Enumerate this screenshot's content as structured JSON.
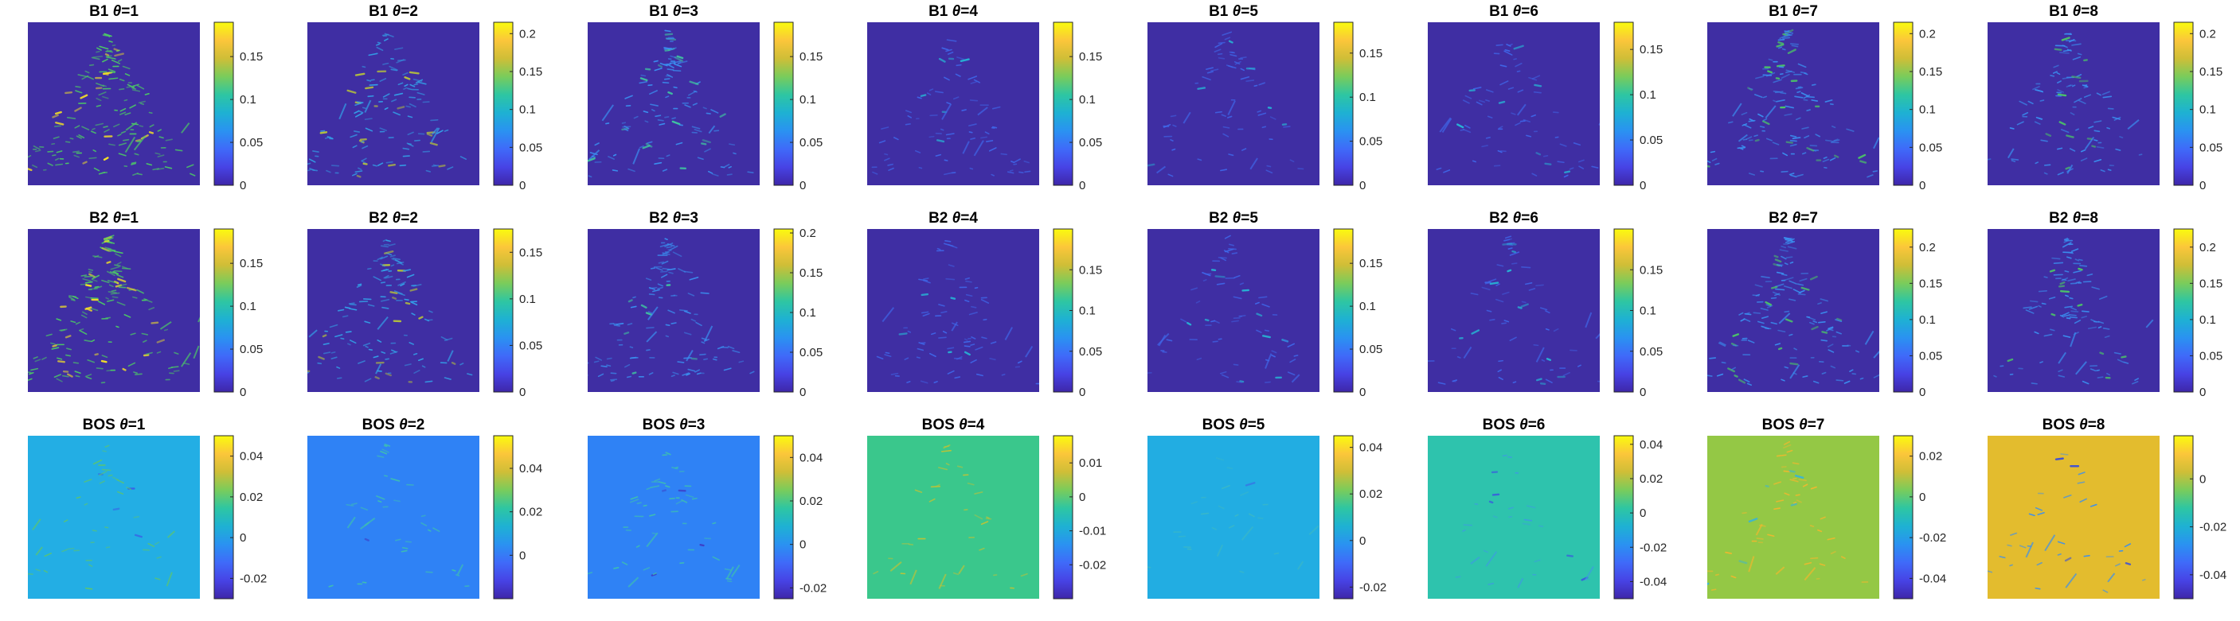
{
  "chart_data": {
    "type": "heatmap",
    "rows": [
      {
        "row_label": "B1",
        "panels": [
          {
            "title_prefix": "B1",
            "theta": "1",
            "clim": [
              0,
              0.19
            ],
            "ticks": [
              "0",
              "0.05",
              "0.1",
              "0.15"
            ],
            "background": "#3f2ea3",
            "stripe_color": "#4cc866",
            "highlight_color": "#f5e226",
            "stripe_density": 0.95
          },
          {
            "title_prefix": "B1",
            "theta": "2",
            "clim": [
              0,
              0.215
            ],
            "ticks": [
              "0",
              "0.05",
              "0.1",
              "0.15",
              "0.2"
            ],
            "background": "#3f2ea3",
            "stripe_color": "#33a0e8",
            "highlight_color": "#b7c43a",
            "stripe_density": 0.75
          },
          {
            "title_prefix": "B1",
            "theta": "3",
            "clim": [
              0,
              0.19
            ],
            "ticks": [
              "0",
              "0.05",
              "0.1",
              "0.15"
            ],
            "background": "#3f2ea3",
            "stripe_color": "#3a8ff0",
            "highlight_color": "#3fc4a0",
            "stripe_density": 0.7
          },
          {
            "title_prefix": "B1",
            "theta": "4",
            "clim": [
              0,
              0.19
            ],
            "ticks": [
              "0",
              "0.05",
              "0.1",
              "0.15"
            ],
            "background": "#3f2ea3",
            "stripe_color": "#3f66e8",
            "highlight_color": "#27b4d5",
            "stripe_density": 0.45
          },
          {
            "title_prefix": "B1",
            "theta": "5",
            "clim": [
              0,
              0.185
            ],
            "ticks": [
              "0",
              "0.05",
              "0.1",
              "0.15"
            ],
            "background": "#3f2ea3",
            "stripe_color": "#3f66e8",
            "highlight_color": "#27b4d5",
            "stripe_density": 0.4
          },
          {
            "title_prefix": "B1",
            "theta": "6",
            "clim": [
              0,
              0.18
            ],
            "ticks": [
              "0",
              "0.05",
              "0.1",
              "0.15"
            ],
            "background": "#3f2ea3",
            "stripe_color": "#3f66e8",
            "highlight_color": "#27b4d5",
            "stripe_density": 0.4
          },
          {
            "title_prefix": "B1",
            "theta": "7",
            "clim": [
              0,
              0.215
            ],
            "ticks": [
              "0",
              "0.05",
              "0.1",
              "0.15",
              "0.2"
            ],
            "background": "#3f2ea3",
            "stripe_color": "#3a8ff0",
            "highlight_color": "#4cc866",
            "stripe_density": 0.8
          },
          {
            "title_prefix": "B1",
            "theta": "8",
            "clim": [
              0,
              0.215
            ],
            "ticks": [
              "0",
              "0.05",
              "0.1",
              "0.15",
              "0.2"
            ],
            "background": "#3f2ea3",
            "stripe_color": "#3a8ff0",
            "highlight_color": "#4cc866",
            "stripe_density": 0.6
          }
        ]
      },
      {
        "row_label": "B2",
        "panels": [
          {
            "title_prefix": "B2",
            "theta": "1",
            "clim": [
              0,
              0.19
            ],
            "ticks": [
              "0",
              "0.05",
              "0.1",
              "0.15"
            ],
            "background": "#3f2ea3",
            "stripe_color": "#4cc866",
            "highlight_color": "#f5e226",
            "stripe_density": 0.95
          },
          {
            "title_prefix": "B2",
            "theta": "2",
            "clim": [
              0,
              0.175
            ],
            "ticks": [
              "0",
              "0.05",
              "0.1",
              "0.15"
            ],
            "background": "#3f2ea3",
            "stripe_color": "#33a0e8",
            "highlight_color": "#b7c43a",
            "stripe_density": 0.75
          },
          {
            "title_prefix": "B2",
            "theta": "3",
            "clim": [
              0,
              0.205
            ],
            "ticks": [
              "0",
              "0.05",
              "0.1",
              "0.15",
              "0.2"
            ],
            "background": "#3f2ea3",
            "stripe_color": "#3a8ff0",
            "highlight_color": "#3fc4a0",
            "stripe_density": 0.7
          },
          {
            "title_prefix": "B2",
            "theta": "4",
            "clim": [
              0,
              0.2
            ],
            "ticks": [
              "0",
              "0.05",
              "0.1",
              "0.15"
            ],
            "background": "#3f2ea3",
            "stripe_color": "#3f66e8",
            "highlight_color": "#27b4d5",
            "stripe_density": 0.45
          },
          {
            "title_prefix": "B2",
            "theta": "5",
            "clim": [
              0,
              0.19
            ],
            "ticks": [
              "0",
              "0.05",
              "0.1",
              "0.15"
            ],
            "background": "#3f2ea3",
            "stripe_color": "#3f66e8",
            "highlight_color": "#27b4d5",
            "stripe_density": 0.4
          },
          {
            "title_prefix": "B2",
            "theta": "6",
            "clim": [
              0,
              0.2
            ],
            "ticks": [
              "0",
              "0.05",
              "0.1",
              "0.15"
            ],
            "background": "#3f2ea3",
            "stripe_color": "#3f66e8",
            "highlight_color": "#27b4d5",
            "stripe_density": 0.4
          },
          {
            "title_prefix": "B2",
            "theta": "7",
            "clim": [
              0,
              0.225
            ],
            "ticks": [
              "0",
              "0.05",
              "0.1",
              "0.15",
              "0.2"
            ],
            "background": "#3f2ea3",
            "stripe_color": "#3a8ff0",
            "highlight_color": "#4cc866",
            "stripe_density": 0.8
          },
          {
            "title_prefix": "B2",
            "theta": "8",
            "clim": [
              0,
              0.225
            ],
            "ticks": [
              "0",
              "0.05",
              "0.1",
              "0.15",
              "0.2"
            ],
            "background": "#3f2ea3",
            "stripe_color": "#3a8ff0",
            "highlight_color": "#4cc866",
            "stripe_density": 0.6
          }
        ]
      },
      {
        "row_label": "BOS",
        "panels": [
          {
            "title_prefix": "BOS",
            "theta": "1",
            "clim": [
              -0.03,
              0.05
            ],
            "ticks": [
              "-0.02",
              "0",
              "0.02",
              "0.04"
            ],
            "background": "#23aee4",
            "stripe_color": "#5dc56e",
            "highlight_color": "#3b5ae8",
            "stripe_density": 0.25
          },
          {
            "title_prefix": "BOS",
            "theta": "2",
            "clim": [
              -0.02,
              0.055
            ],
            "ticks": [
              "0",
              "0.02",
              "0.04"
            ],
            "background": "#2f82f5",
            "stripe_color": "#3ec0b0",
            "highlight_color": "#3d3fc8",
            "stripe_density": 0.2
          },
          {
            "title_prefix": "BOS",
            "theta": "3",
            "clim": [
              -0.025,
              0.05
            ],
            "ticks": [
              "-0.02",
              "0",
              "0.02",
              "0.04"
            ],
            "background": "#2f82f5",
            "stripe_color": "#3ec0b0",
            "highlight_color": "#3d3fc8",
            "stripe_density": 0.3
          },
          {
            "title_prefix": "BOS",
            "theta": "4",
            "clim": [
              -0.03,
              0.018
            ],
            "ticks": [
              "-0.02",
              "-0.01",
              "0",
              "0.01"
            ],
            "background": "#3ac78c",
            "stripe_color": "#b9c33a",
            "highlight_color": "#2a9ee0",
            "stripe_density": 0.2
          },
          {
            "title_prefix": "BOS",
            "theta": "5",
            "clim": [
              -0.025,
              0.045
            ],
            "ticks": [
              "-0.02",
              "0",
              "0.02",
              "0.04"
            ],
            "background": "#22ade2",
            "stripe_color": "#3ab8c8",
            "highlight_color": "#3a6ce6",
            "stripe_density": 0.15
          },
          {
            "title_prefix": "BOS",
            "theta": "6",
            "clim": [
              -0.05,
              0.045
            ],
            "ticks": [
              "-0.04",
              "-0.02",
              "0",
              "0.02",
              "0.04"
            ],
            "background": "#2ec3ad",
            "stripe_color": "#3d9de0",
            "highlight_color": "#3a58e0",
            "stripe_density": 0.15
          },
          {
            "title_prefix": "BOS",
            "theta": "7",
            "clim": [
              -0.05,
              0.03
            ],
            "ticks": [
              "-0.04",
              "-0.02",
              "0",
              "0.02"
            ],
            "background": "#94c845",
            "stripe_color": "#f0b82e",
            "highlight_color": "#33b3e0",
            "stripe_density": 0.3
          },
          {
            "title_prefix": "BOS",
            "theta": "8",
            "clim": [
              -0.05,
              0.018
            ],
            "ticks": [
              "-0.04",
              "-0.02",
              "0"
            ],
            "background": "#e3bc2e",
            "stripe_color": "#3b8ff0",
            "highlight_color": "#3b4fd8",
            "stripe_density": 0.2
          }
        ]
      }
    ],
    "colormap": [
      "#3e26a8",
      "#4743e5",
      "#3f6af9",
      "#2a92f1",
      "#1eb1d3",
      "#2ec6a2",
      "#7acc5b",
      "#cfbe37",
      "#fbc63a",
      "#f9fb0e"
    ]
  }
}
